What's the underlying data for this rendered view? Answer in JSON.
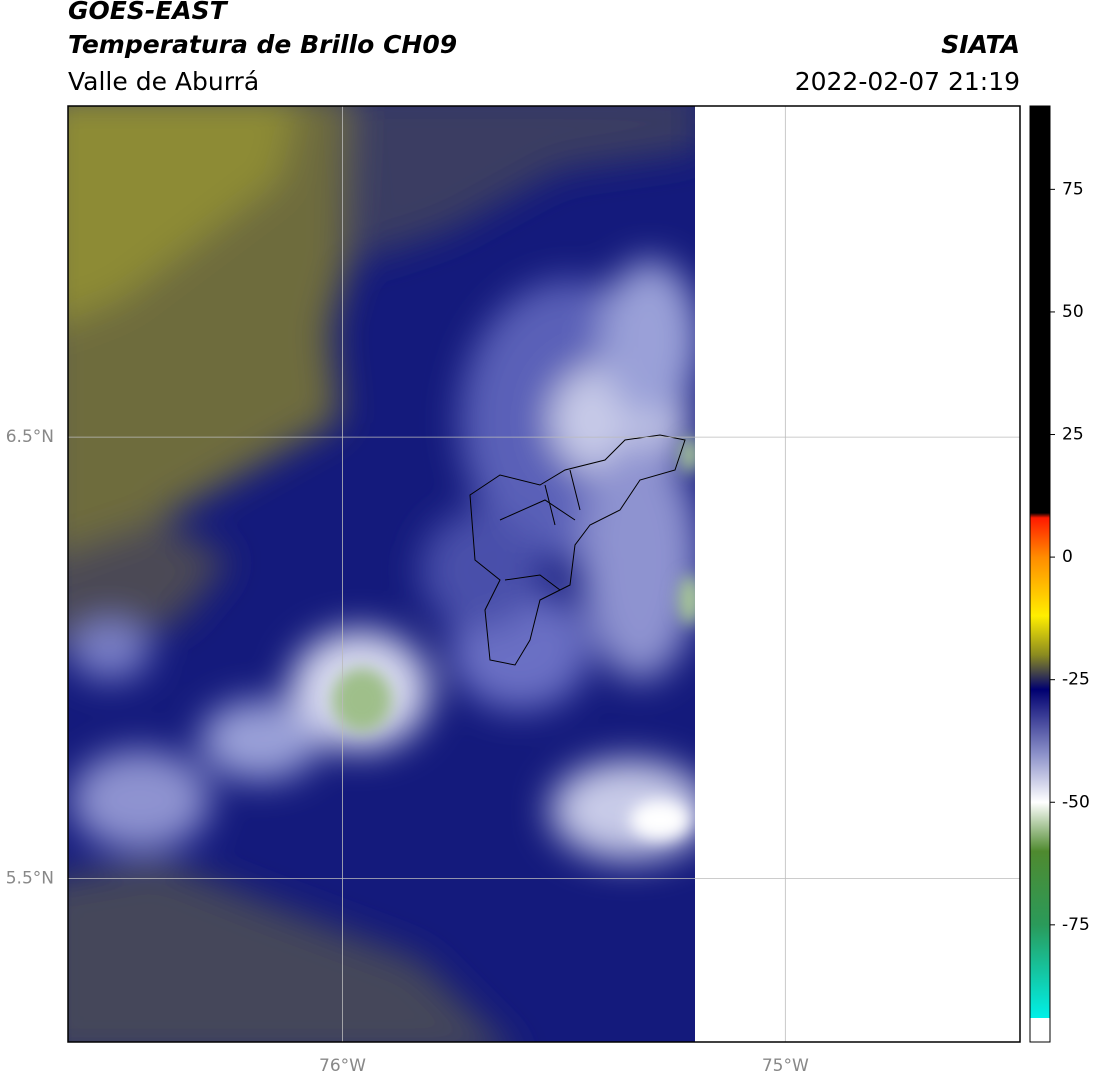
{
  "chart_data": {
    "type": "map",
    "title": "GOES-EAST",
    "subtitle": "Temperatura de Brillo CH09",
    "region": "Valle de Aburrá",
    "source": "SIATA",
    "datetime": "2022-02-07 21:19",
    "xlim": [
      -76.62,
      -74.47
    ],
    "ylim": [
      5.13,
      7.25
    ],
    "xticks": [
      {
        "value": -76,
        "label": "76°W"
      },
      {
        "value": -75,
        "label": "75°W"
      }
    ],
    "yticks": [
      {
        "value": 6.5,
        "label": "6.5°N"
      },
      {
        "value": 5.5,
        "label": "5.5°N"
      }
    ],
    "grid": true,
    "colorbar": {
      "clim": [
        -94,
        92
      ],
      "ticks": [
        75,
        50,
        25,
        0,
        -25,
        -50,
        -75
      ],
      "stops": [
        {
          "value": 92,
          "color": "#000000"
        },
        {
          "value": 9,
          "color": "#000000"
        },
        {
          "value": 8,
          "color": "#ff1a00"
        },
        {
          "value": 0,
          "color": "#ff8c00"
        },
        {
          "value": -12,
          "color": "#ffee00"
        },
        {
          "value": -20,
          "color": "#8a8a20"
        },
        {
          "value": -27,
          "color": "#000070"
        },
        {
          "value": -40,
          "color": "#8a8fc8"
        },
        {
          "value": -50,
          "color": "#ffffff"
        },
        {
          "value": -60,
          "color": "#4f8a2f"
        },
        {
          "value": -75,
          "color": "#2a9a5a"
        },
        {
          "value": -94,
          "color": "#00f0e8"
        }
      ]
    }
  }
}
